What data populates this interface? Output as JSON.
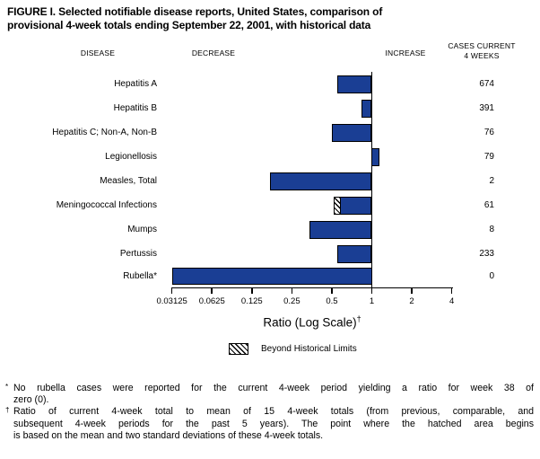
{
  "figure": {
    "title_lines": [
      "FIGURE I. Selected notifiable disease reports, United States, comparison of",
      "provisional 4-week totals ending September 22, 2001, with historical data"
    ]
  },
  "headers": {
    "disease": "DISEASE",
    "decrease": "DECREASE",
    "increase": "INCREASE",
    "cases_line1": "CASES CURRENT",
    "cases_line2": "4 WEEKS"
  },
  "x_axis": {
    "label": "Ratio (Log Scale)",
    "label_marker": "†"
  },
  "legend": {
    "swatch": "diagonal-hatch",
    "label": "Beyond Historical Limits"
  },
  "footnotes": [
    {
      "marker": "*",
      "lines": [
        "No rubella cases were reported for the current 4-week period yielding a ratio for week 38 of",
        "zero (0)."
      ]
    },
    {
      "marker": "†",
      "lines": [
        "Ratio of current 4-week total to mean of 15 4-week totals (from previous, comparable, and",
        "subsequent 4-week periods for the past 5 years). The point where the hatched area begins",
        "is based on the mean and two standard deviations of these 4-week totals."
      ]
    }
  ],
  "colors": {
    "bar_blue": "#1a3e94",
    "axis_black": "#000000"
  },
  "chart_data": {
    "type": "bar",
    "orientation": "horizontal",
    "xlabel": "Ratio (Log Scale)",
    "xscale": "log2",
    "xlim": [
      0.03125,
      4
    ],
    "baseline": 1,
    "x_ticks": [
      0.03125,
      0.0625,
      0.125,
      0.25,
      0.5,
      1,
      2,
      4
    ],
    "x_tick_labels": [
      "0.03125",
      "0.0625",
      "0.125",
      "0.25",
      "0.5",
      "1",
      "2",
      "4"
    ],
    "legend": "Beyond Historical Limits",
    "rows": [
      {
        "disease": "Hepatitis A",
        "ratio": 0.55,
        "cases": 674,
        "beyond_historical_limits": false
      },
      {
        "disease": "Hepatitis B",
        "ratio": 0.84,
        "cases": 391,
        "beyond_historical_limits": false
      },
      {
        "disease": "Hepatitis C; Non-A, Non-B",
        "ratio": 0.5,
        "cases": 76,
        "beyond_historical_limits": false
      },
      {
        "disease": "Legionellosis",
        "ratio": 1.14,
        "cases": 79,
        "beyond_historical_limits": false
      },
      {
        "disease": "Measles, Total",
        "ratio": 0.17,
        "cases": 2,
        "beyond_historical_limits": false
      },
      {
        "disease": "Meningococcal Infections",
        "ratio": 0.52,
        "historical_limit": 0.58,
        "cases": 61,
        "beyond_historical_limits": true
      },
      {
        "disease": "Mumps",
        "ratio": 0.34,
        "cases": 8,
        "beyond_historical_limits": false
      },
      {
        "disease": "Pertussis",
        "ratio": 0.55,
        "cases": 233,
        "beyond_historical_limits": false
      },
      {
        "disease": "Rubella*",
        "ratio": 0,
        "cases": 0,
        "beyond_historical_limits": false,
        "note": "ratio is zero; bar drawn to axis minimum"
      }
    ]
  }
}
